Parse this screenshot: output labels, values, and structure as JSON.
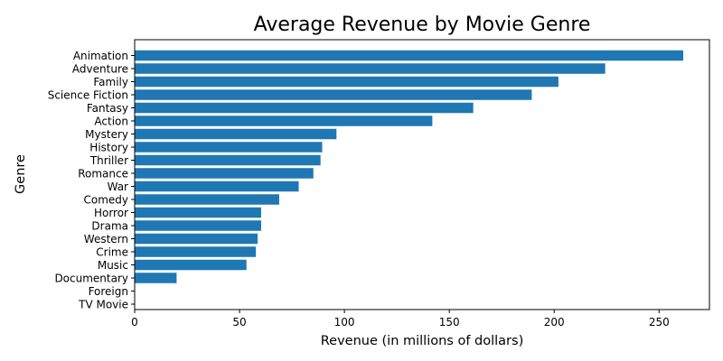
{
  "chart_data": {
    "type": "bar",
    "orientation": "horizontal",
    "title": "Average Revenue by Movie Genre",
    "xlabel": "Revenue (in millions of dollars)",
    "ylabel": "Genre",
    "xlim": [
      0,
      274
    ],
    "xticks": [
      0,
      50,
      100,
      150,
      200,
      250
    ],
    "grid": false,
    "bar_color": "#1f77b4",
    "categories": [
      "Animation",
      "Adventure",
      "Family",
      "Science Fiction",
      "Fantasy",
      "Action",
      "Mystery",
      "History",
      "Thriller",
      "Romance",
      "War",
      "Comedy",
      "Horror",
      "Drama",
      "Western",
      "Crime",
      "Music",
      "Documentary",
      "Foreign",
      "TV Movie"
    ],
    "values": [
      261.5,
      224.3,
      202.0,
      189.3,
      161.4,
      141.9,
      96.2,
      89.4,
      88.6,
      85.2,
      78.2,
      68.9,
      60.3,
      60.3,
      58.6,
      57.8,
      53.3,
      20.0,
      0,
      0
    ]
  }
}
